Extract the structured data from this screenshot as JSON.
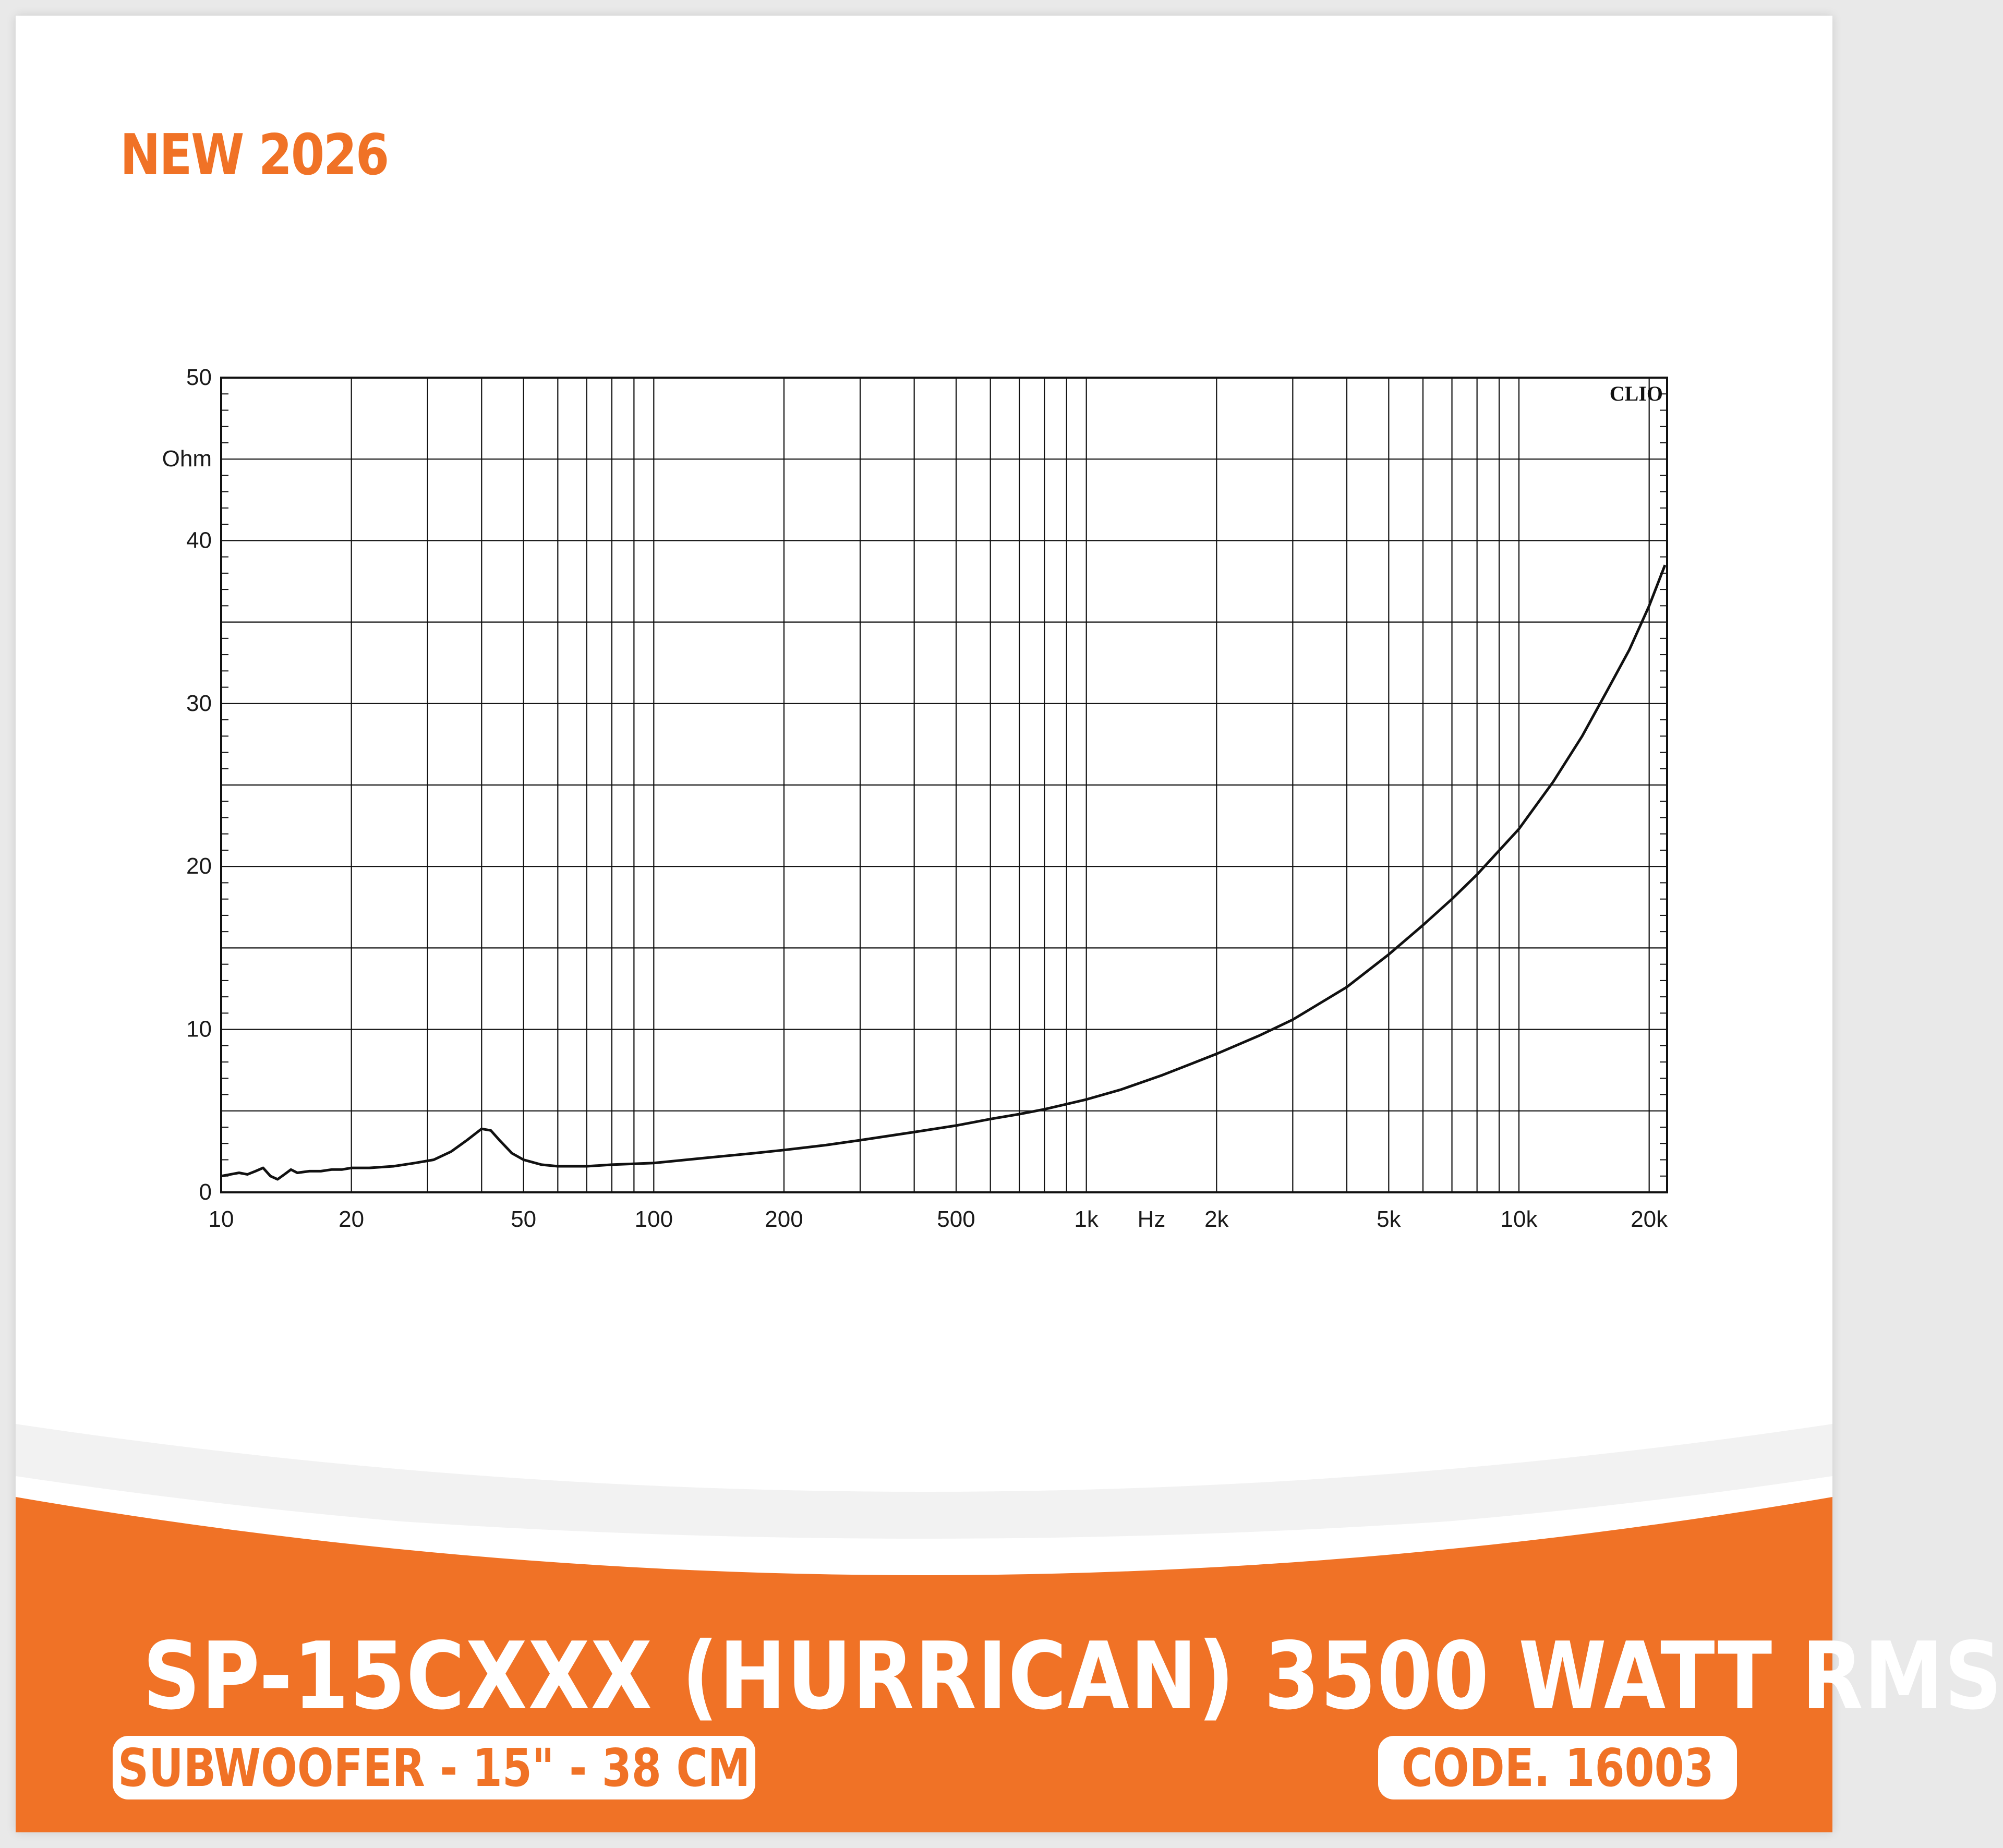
{
  "badge": {
    "text": "NEW 2026"
  },
  "product": {
    "title": "SP-15CXXX (HURRICAN) 3500 WATT RMS",
    "subtitle": "SUBWOOFER - 15\" - 38 CM",
    "code": "CODE. 16003"
  },
  "colors": {
    "accent": "#f07226",
    "curve": "#111111",
    "grid": "#111111"
  },
  "chart_data": {
    "type": "line",
    "title": "",
    "watermark": "CLIO",
    "xlabel": "Hz",
    "ylabel": "Ohm",
    "x_scale": "log",
    "xlim": [
      10,
      22000
    ],
    "ylim": [
      0,
      50
    ],
    "grid": true,
    "x_ticks": [
      {
        "value": 10,
        "label": "10"
      },
      {
        "value": 20,
        "label": "20"
      },
      {
        "value": 50,
        "label": "50"
      },
      {
        "value": 100,
        "label": "100"
      },
      {
        "value": 200,
        "label": "200"
      },
      {
        "value": 500,
        "label": "500"
      },
      {
        "value": 1000,
        "label": "1k"
      },
      {
        "value": 2000,
        "label": "2k"
      },
      {
        "value": 5000,
        "label": "5k"
      },
      {
        "value": 10000,
        "label": "10k"
      },
      {
        "value": 20000,
        "label": "20k"
      }
    ],
    "y_ticks": [
      {
        "value": 0,
        "label": "0"
      },
      {
        "value": 10,
        "label": "10"
      },
      {
        "value": 20,
        "label": "20"
      },
      {
        "value": 30,
        "label": "30"
      },
      {
        "value": 40,
        "label": "40"
      },
      {
        "value": 50,
        "label": "50"
      }
    ],
    "series": [
      {
        "x": [
          10,
          10.5,
          11,
          11.5,
          12,
          12.5,
          13,
          13.5,
          14,
          14.5,
          15,
          16,
          17,
          18,
          19,
          20,
          22,
          25,
          28,
          31,
          34,
          37,
          40,
          42,
          44,
          47,
          50,
          55,
          60,
          70,
          80,
          100,
          130,
          170,
          200,
          250,
          300,
          400,
          500,
          600,
          700,
          800,
          1000,
          1200,
          1500,
          2000,
          2500,
          3000,
          4000,
          5000,
          6000,
          7000,
          8000,
          10000,
          12000,
          14000,
          16000,
          18000,
          20000,
          22000
        ],
        "y": [
          1.0,
          1.1,
          1.2,
          1.1,
          1.3,
          1.5,
          1.0,
          0.8,
          1.1,
          1.4,
          1.2,
          1.3,
          1.3,
          1.4,
          1.4,
          1.5,
          1.5,
          1.6,
          1.8,
          2.0,
          2.5,
          3.2,
          3.9,
          3.8,
          3.2,
          2.4,
          2.0,
          1.7,
          1.6,
          1.6,
          1.7,
          1.8,
          2.1,
          2.4,
          2.6,
          2.9,
          3.2,
          3.7,
          4.1,
          4.5,
          4.8,
          5.1,
          5.7,
          6.3,
          7.2,
          8.5,
          9.6,
          10.6,
          12.6,
          14.6,
          16.4,
          18.0,
          19.5,
          22.3,
          25.2,
          28.0,
          30.8,
          33.3,
          36.0,
          38.5
        ]
      }
    ]
  }
}
